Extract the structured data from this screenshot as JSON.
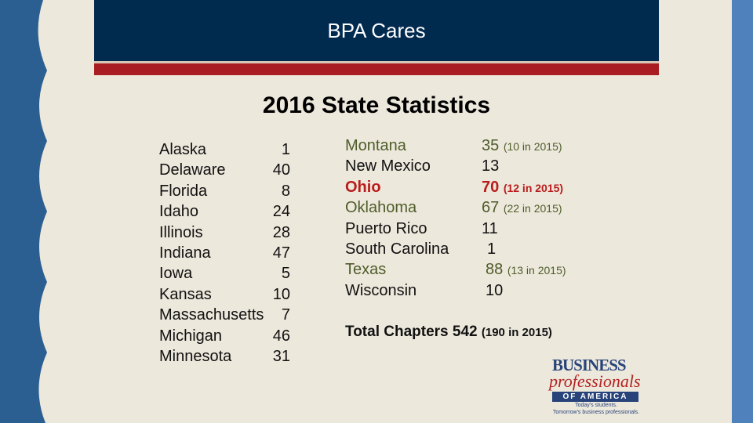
{
  "header": {
    "title": "BPA Cares"
  },
  "slide_title": "2016 State Statistics",
  "left_states": [
    {
      "name": "Alaska",
      "count": "1"
    },
    {
      "name": "Delaware",
      "count": "40"
    },
    {
      "name": "Florida",
      "count": "8"
    },
    {
      "name": "Idaho",
      "count": "24"
    },
    {
      "name": "Illinois",
      "count": "28"
    },
    {
      "name": "Indiana",
      "count": "47"
    },
    {
      "name": "Iowa",
      "count": "5"
    },
    {
      "name": "Kansas",
      "count": "10"
    },
    {
      "name": "Massachusetts",
      "count": "7"
    },
    {
      "name": "Michigan",
      "count": "46"
    },
    {
      "name": "Minnesota",
      "count": "31"
    }
  ],
  "right_states": [
    {
      "name": "Montana",
      "count": "35",
      "note": "(10 in 2015)"
    },
    {
      "name": "New Mexico",
      "count": "13",
      "note": ""
    },
    {
      "name": "Ohio",
      "count": "70",
      "note": "(12 in 2015)"
    },
    {
      "name": "Oklahoma",
      "count": "67",
      "note": "(22 in 2015)"
    },
    {
      "name": "Puerto Rico",
      "count": "11",
      "note": ""
    },
    {
      "name": "South Carolina",
      "count": "1",
      "note": ""
    },
    {
      "name": "Texas",
      "count": "88",
      "note": "(13 in 2015)"
    },
    {
      "name": "Wisconsin",
      "count": "10",
      "note": ""
    }
  ],
  "total": {
    "label": "Total Chapters 542",
    "note": "(190 in 2015)"
  },
  "logo": {
    "line1": "BUSINESS",
    "line2": "professionals",
    "band": "OF AMERICA",
    "tag1": "Today's students.",
    "tag2": "Tomorrow's business professionals."
  },
  "colors": {
    "header": "#012a4f",
    "accent_red": "#a91d22",
    "background": "#ede8dc",
    "stripe": "#4f81bd"
  }
}
